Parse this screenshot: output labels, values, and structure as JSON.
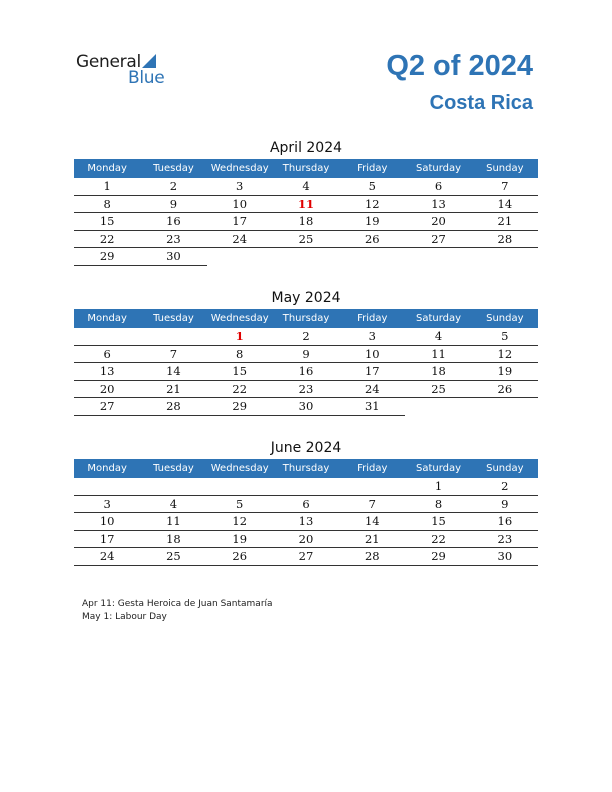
{
  "logo": {
    "general": "General",
    "blue": "Blue"
  },
  "header": {
    "quarter_title": "Q2 of 2024",
    "country": "Costa Rica"
  },
  "weekdays": [
    "Monday",
    "Tuesday",
    "Wednesday",
    "Thursday",
    "Friday",
    "Saturday",
    "Sunday"
  ],
  "months": [
    {
      "title": "April 2024",
      "weeks": [
        [
          "1",
          "2",
          "3",
          "4",
          "5",
          "6",
          "7"
        ],
        [
          "8",
          "9",
          "10",
          "11",
          "12",
          "13",
          "14"
        ],
        [
          "15",
          "16",
          "17",
          "18",
          "19",
          "20",
          "21"
        ],
        [
          "22",
          "23",
          "24",
          "25",
          "26",
          "27",
          "28"
        ],
        [
          "29",
          "30",
          "",
          "",
          "",
          "",
          ""
        ]
      ],
      "holidays": [
        "11"
      ]
    },
    {
      "title": "May 2024",
      "weeks": [
        [
          "",
          "",
          "1",
          "2",
          "3",
          "4",
          "5"
        ],
        [
          "6",
          "7",
          "8",
          "9",
          "10",
          "11",
          "12"
        ],
        [
          "13",
          "14",
          "15",
          "16",
          "17",
          "18",
          "19"
        ],
        [
          "20",
          "21",
          "22",
          "23",
          "24",
          "25",
          "26"
        ],
        [
          "27",
          "28",
          "29",
          "30",
          "31",
          "",
          ""
        ]
      ],
      "holidays": [
        "1"
      ]
    },
    {
      "title": "June 2024",
      "weeks": [
        [
          "",
          "",
          "",
          "",
          "",
          "1",
          "2"
        ],
        [
          "3",
          "4",
          "5",
          "6",
          "7",
          "8",
          "9"
        ],
        [
          "10",
          "11",
          "12",
          "13",
          "14",
          "15",
          "16"
        ],
        [
          "17",
          "18",
          "19",
          "20",
          "21",
          "22",
          "23"
        ],
        [
          "24",
          "25",
          "26",
          "27",
          "28",
          "29",
          "30"
        ]
      ],
      "holidays": []
    }
  ],
  "notes": [
    "Apr 11: Gesta Heroica de Juan Santamaría",
    "May 1: Labour Day"
  ],
  "colors": {
    "accent": "#2e74b5",
    "holiday": "#e00000"
  }
}
